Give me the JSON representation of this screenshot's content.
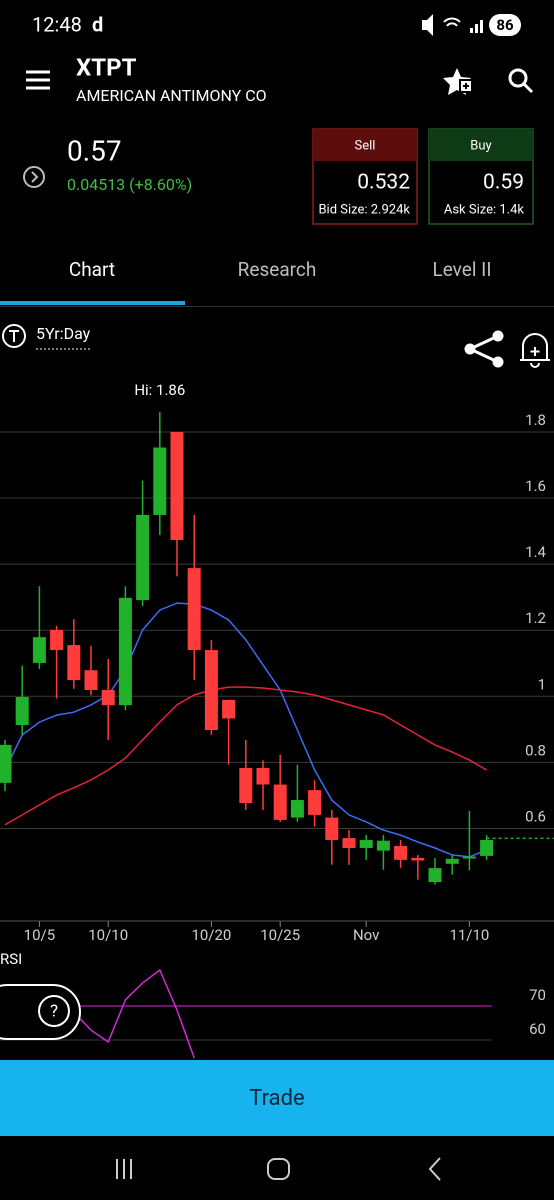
{
  "status_bar": {
    "time": "12:48",
    "app_icon": "d",
    "battery": "86"
  },
  "header": {
    "symbol": "XTPT",
    "company": "AMERICAN ANTIMONY CO"
  },
  "quote": {
    "price": "0.57",
    "change": "0.04513 (+8.60%)",
    "sell": {
      "label": "Sell",
      "price": "0.532",
      "size": "Bid Size: 2.924k"
    },
    "buy": {
      "label": "Buy",
      "price": "0.59",
      "size": "Ask Size: 1.4k"
    }
  },
  "tabs": [
    "Chart",
    "Research",
    "Level II"
  ],
  "period": "5Yr:Day",
  "trade_button": "Trade",
  "chart_data": [
    {
      "type": "candlestick",
      "annotation": "Hi: 1.86",
      "categories": [
        null,
        null,
        "10/5",
        null,
        null,
        null,
        "10/10",
        null,
        null,
        null,
        null,
        null,
        "10/20",
        null,
        null,
        null,
        "10/25",
        null,
        null,
        null,
        null,
        "Nov",
        null,
        null,
        null,
        null,
        null,
        "11/10",
        null
      ],
      "open": [
        0.738,
        0.913,
        1.101,
        1.201,
        1.155,
        1.079,
        1.019,
        0.973,
        1.291,
        1.549,
        1.8,
        1.388,
        1.14,
        0.989,
        0.783,
        0.783,
        0.733,
        0.633,
        0.716,
        0.633,
        0.571,
        0.541,
        0.533,
        0.547,
        0.511,
        0.438,
        0.493,
        0.509,
        0.517
      ],
      "high": [
        0.868,
        1.093,
        1.333,
        1.213,
        1.233,
        1.153,
        1.113,
        1.333,
        1.653,
        1.86,
        1.8,
        1.549,
        1.17,
        0.989,
        0.868,
        0.806,
        0.823,
        0.793,
        0.746,
        0.656,
        0.595,
        0.58,
        0.58,
        0.565,
        0.52,
        0.511,
        0.52,
        0.653,
        0.58
      ],
      "low": [
        0.713,
        0.883,
        1.083,
        0.993,
        1.023,
        1.003,
        0.868,
        0.958,
        1.273,
        1.488,
        1.363,
        1.049,
        0.883,
        0.793,
        0.656,
        0.656,
        0.62,
        0.62,
        0.605,
        0.49,
        0.49,
        0.505,
        0.475,
        0.481,
        0.445,
        0.43,
        0.46,
        0.473,
        0.505
      ],
      "close": [
        0.853,
        0.998,
        1.179,
        1.14,
        1.049,
        1.019,
        0.973,
        1.298,
        1.549,
        1.753,
        1.473,
        1.14,
        0.898,
        0.933,
        0.677,
        0.733,
        0.626,
        0.686,
        0.641,
        0.565,
        0.541,
        0.565,
        0.563,
        0.505,
        0.503,
        0.48,
        0.508,
        0.515,
        0.565
      ],
      "up_color": "#22b12a",
      "down_color": "#ff3b3b",
      "overlays": [
        {
          "color": "#3d6cf5",
          "values": [
            0.777,
            0.883,
            0.922,
            0.943,
            0.952,
            0.974,
            1.004,
            1.08,
            1.201,
            1.261,
            1.282,
            1.279,
            1.261,
            1.231,
            1.171,
            1.095,
            1.019,
            0.898,
            0.777,
            0.686,
            0.641,
            0.62,
            0.595,
            0.58,
            0.559,
            0.541,
            0.52,
            0.514,
            0.535
          ]
        },
        {
          "color": "#e8213a",
          "values": [
            0.611,
            0.641,
            0.671,
            0.701,
            0.723,
            0.747,
            0.777,
            0.813,
            0.868,
            0.922,
            0.974,
            1.004,
            1.019,
            1.028,
            1.028,
            1.025,
            1.019,
            1.013,
            1.004,
            0.989,
            0.974,
            0.959,
            0.944,
            0.913,
            0.883,
            0.853,
            0.831,
            0.807,
            0.777
          ]
        }
      ],
      "last_price": 0.57,
      "last_price_color": "#22b12a",
      "ylim": [
        0.323,
        1.927
      ],
      "yticks": [
        0.6,
        0.8,
        1,
        1.2,
        1.4,
        1.6,
        1.8
      ],
      "grid": true
    },
    {
      "type": "line",
      "title": "RSI",
      "color": "#d62ad6",
      "values": [
        71.2,
        73.2,
        75.3,
        71.8,
        68.2,
        62.9,
        59.4,
        71.8,
        76.8,
        80.6,
        68.8,
        54.7,
        null,
        null,
        null,
        null,
        null,
        null,
        null,
        null,
        null,
        null,
        null,
        null,
        null,
        null,
        null,
        null,
        null
      ],
      "ylim": [
        54.1,
        85
      ],
      "yticks": [
        60,
        70
      ],
      "grid": true
    }
  ]
}
